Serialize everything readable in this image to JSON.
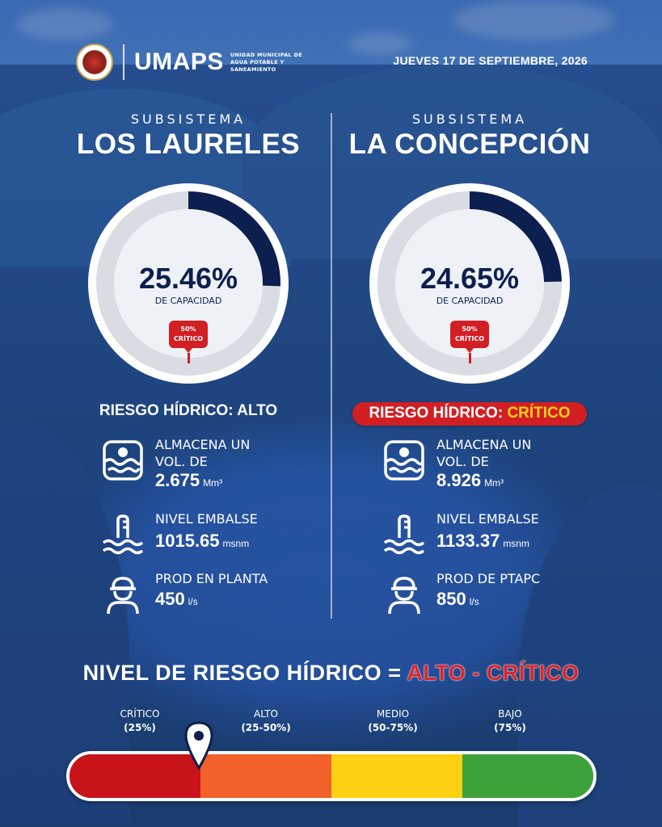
{
  "header": {
    "brand": "UMAPS",
    "brand_subtitle": "UNIDAD MUNICIPAL DE AGUA POTABLE Y SANEAMIENTO",
    "date": "JUEVES 17 DE SEPTIEMBRE, 2026"
  },
  "subsystems": [
    {
      "label": "SUBSISTEMA",
      "name": "LOS LAURELES",
      "capacity_percent": 25.46,
      "capacity_text": "25.46%",
      "capacity_label": "DE CAPACIDAD",
      "critical_marker": "50%\nCRÍTICO",
      "risk_prefix": "RIESGO HÍDRICO:",
      "risk_level": "ALTO",
      "stats": [
        {
          "icon": "water-tank-icon",
          "label": "ALMACENA UN\nVOL. DE",
          "value": "2.675",
          "unit": "Mm³"
        },
        {
          "icon": "water-level-icon",
          "label": "NIVEL EMBALSE",
          "value": "1015.65",
          "unit": "msnm"
        },
        {
          "icon": "worker-icon",
          "label": "PROD EN PLANTA",
          "value": "450",
          "unit": "l/s"
        }
      ]
    },
    {
      "label": "SUBSISTEMA",
      "name": "LA CONCEPCIÓN",
      "capacity_percent": 24.65,
      "capacity_text": "24.65%",
      "capacity_label": "DE CAPACIDAD",
      "critical_marker": "50%\nCRÍTICO",
      "risk_prefix": "RIESGO HÍDRICO:",
      "risk_level": "CRÍTICO",
      "stats": [
        {
          "icon": "water-tank-icon",
          "label": "ALMACENA UN\nVOL. DE",
          "value": "8.926",
          "unit": "Mm³"
        },
        {
          "icon": "water-level-icon",
          "label": "NIVEL EMBALSE",
          "value": "1133.37",
          "unit": "msnm"
        },
        {
          "icon": "worker-icon",
          "label": "PROD DE PTAPC",
          "value": "850",
          "unit": "l/s"
        }
      ]
    }
  ],
  "summary": {
    "prefix": "NIVEL DE RIESGO HÍDRICO =",
    "value": "ALTO - CRÍTICO"
  },
  "scale": {
    "levels": [
      {
        "name": "CRÍTICO",
        "range": "(25%)",
        "color": "#c8131b"
      },
      {
        "name": "ALTO",
        "range": "(25-50%)",
        "color": "#f2612a"
      },
      {
        "name": "MEDIO",
        "range": "(50-75%)",
        "color": "#fdd012"
      },
      {
        "name": "BAJO",
        "range": "(75%)",
        "color": "#3ea23a"
      }
    ],
    "marker_icon": "location-pin-icon"
  },
  "colors": {
    "gauge_fill": "#0d1f4e",
    "gauge_track": "#d9dde3",
    "critical_red": "#d21f24",
    "highlight_yellow": "#ffd21a"
  }
}
